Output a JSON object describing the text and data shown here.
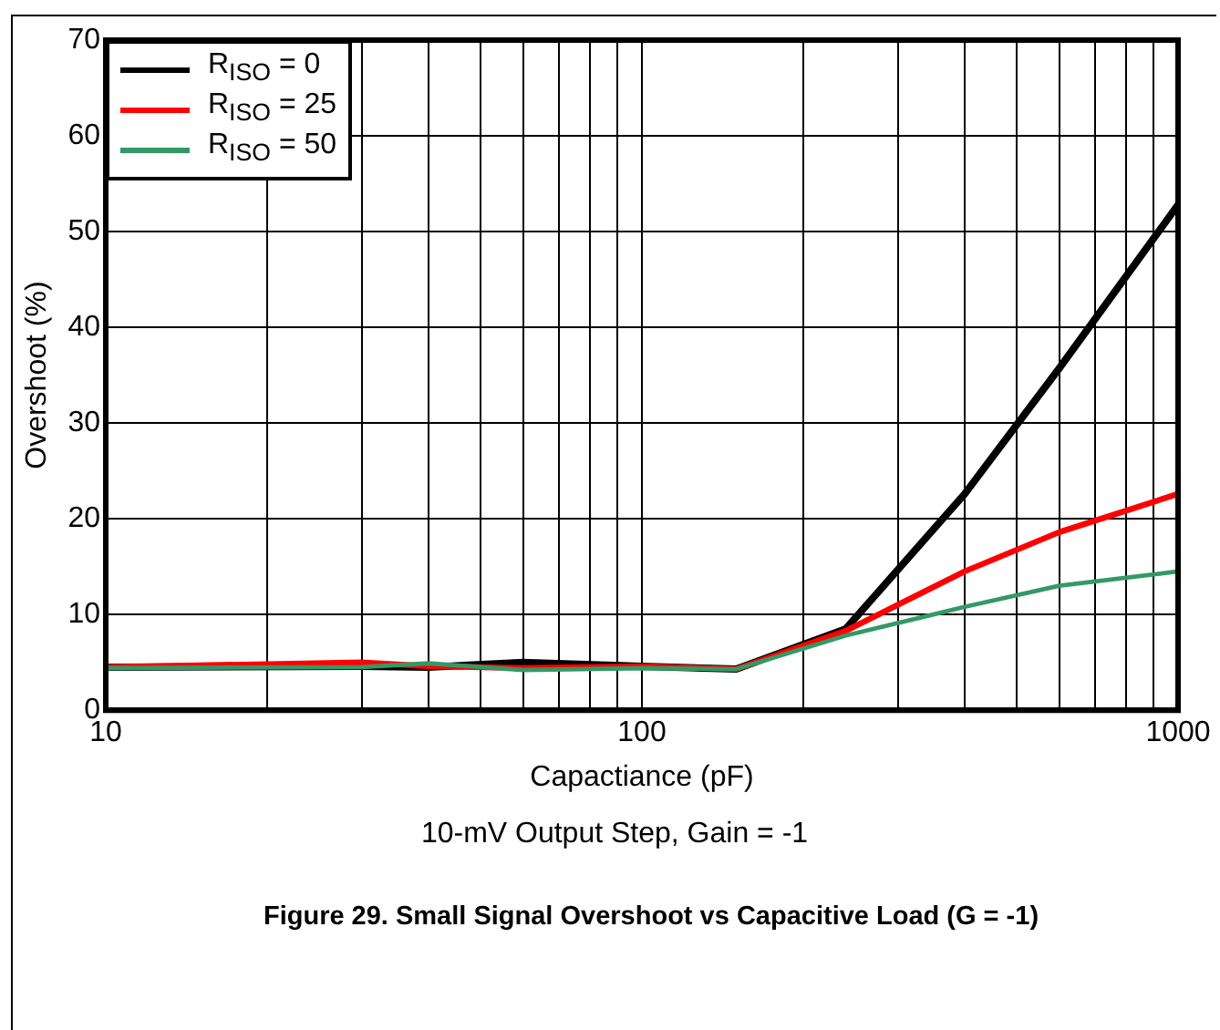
{
  "chart_data": {
    "type": "line",
    "title": "Figure 29. Small Signal Overshoot vs Capacitive Load (G = -1)",
    "xlabel": "Capactiance (pF)",
    "ylabel": "Overshoot (%)",
    "annotations": [
      "10-mV Output Step, Gain = -1"
    ],
    "x": [
      10,
      30,
      40,
      60,
      100,
      150,
      240,
      400,
      600,
      1000
    ],
    "series": [
      {
        "name": "R$_{ISO}$ = 0",
        "color": "#000000",
        "values": [
          4.5,
          4.6,
          4.5,
          5.0,
          4.6,
          4.3,
          8.5,
          22.6,
          35.7,
          52.8
        ]
      },
      {
        "name": "R$_{ISO}$ = 25",
        "color": "#ff0000",
        "values": [
          4.5,
          5.0,
          4.6,
          4.4,
          4.6,
          4.3,
          8.3,
          14.5,
          18.6,
          22.6
        ]
      },
      {
        "name": "R$_{ISO}$ = 50",
        "color": "#339966",
        "values": [
          4.4,
          4.5,
          4.9,
          4.2,
          4.4,
          4.3,
          7.8,
          10.8,
          13.0,
          14.5
        ]
      }
    ],
    "log": "x",
    "xlim": [
      10,
      1000
    ],
    "xticks": [
      10,
      {
        "value": 20,
        "label": null
      },
      {
        "value": 30,
        "label": null
      },
      {
        "value": 40,
        "label": null
      },
      {
        "value": 50,
        "label": null
      },
      {
        "value": 60,
        "label": null
      },
      {
        "value": 70,
        "label": null
      },
      {
        "value": 80,
        "label": null
      },
      {
        "value": 90,
        "label": null
      },
      100,
      {
        "value": 200,
        "label": null
      },
      {
        "value": 300,
        "label": null
      },
      {
        "value": 400,
        "label": null
      },
      {
        "value": 500,
        "label": null
      },
      {
        "value": 600,
        "label": null
      },
      {
        "value": 700,
        "label": null
      },
      {
        "value": 800,
        "label": null
      },
      {
        "value": 900,
        "label": null
      },
      1000
    ],
    "ylim": [
      0,
      70
    ],
    "yticks": [
      0,
      10,
      20,
      30,
      40,
      50,
      60,
      70
    ],
    "grid": true,
    "legend": "top left",
    "marker": "none",
    "line_style": "solid"
  }
}
